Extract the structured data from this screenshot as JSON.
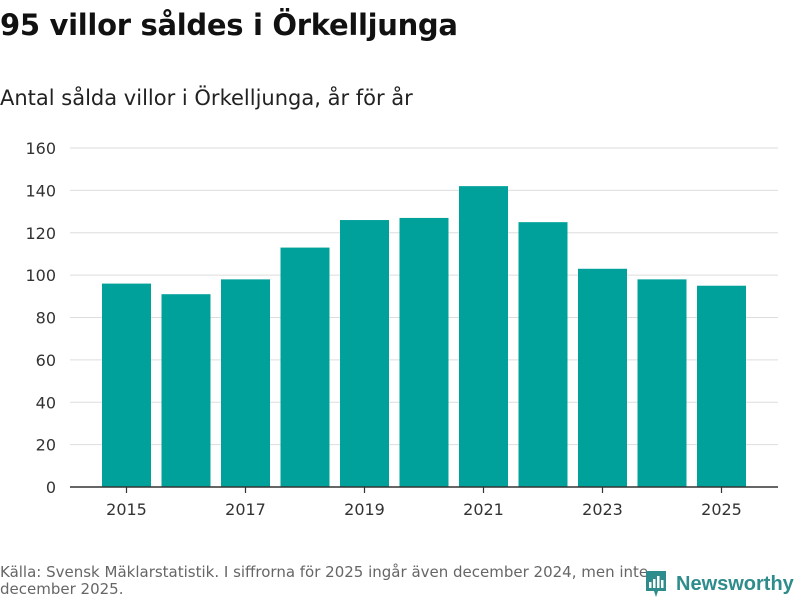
{
  "header": {
    "title": "95 villor såldes i Örkelljunga",
    "subtitle": "Antal sålda villor i Örkelljunga, år för år"
  },
  "chart_data": {
    "type": "bar",
    "title": "95 villor såldes i Örkelljunga",
    "subtitle": "Antal sålda villor i Örkelljunga, år för år",
    "categories": [
      "2015",
      "2016",
      "2017",
      "2018",
      "2019",
      "2020",
      "2021",
      "2022",
      "2023",
      "2024",
      "2025"
    ],
    "values": [
      96,
      91,
      98,
      113,
      126,
      127,
      142,
      125,
      103,
      98,
      95
    ],
    "x_tick_labels": [
      "2015",
      "2017",
      "2019",
      "2021",
      "2023",
      "2025"
    ],
    "y_ticks": [
      0,
      20,
      40,
      60,
      80,
      100,
      120,
      140,
      160
    ],
    "ylim": [
      0,
      160
    ],
    "xlabel": "",
    "ylabel": "",
    "grid": true,
    "bar_color": "#00a19a"
  },
  "footer": {
    "source": "Källa: Svensk Mäklarstatistik. I siffrorna för 2025 ingår även december 2024, men inte december 2025.",
    "brand": "Newsworthy",
    "brand_color": "#2f8c8c"
  }
}
